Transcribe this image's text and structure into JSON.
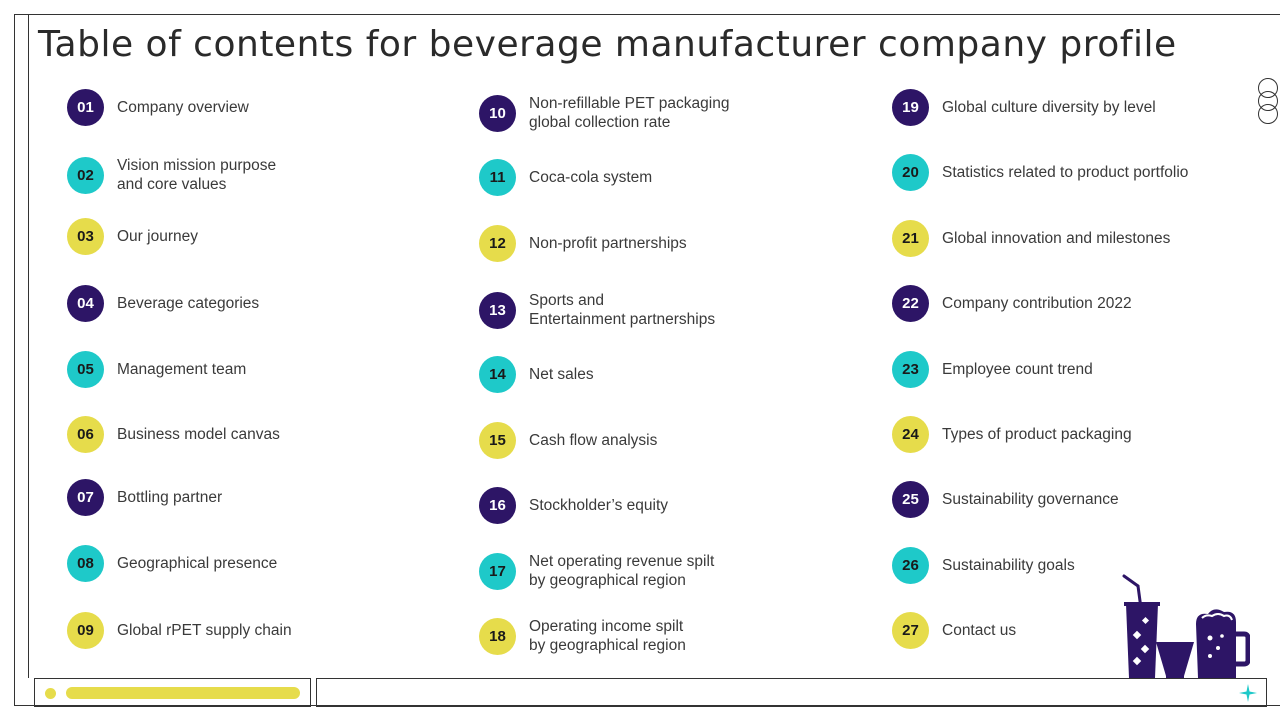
{
  "title": "Table of contents for beverage manufacturer company profile",
  "colors": {
    "purple": "#2d1566",
    "teal": "#1ec9c9",
    "yellow": "#e6dc4b"
  },
  "items": [
    {
      "num": "01",
      "label": "Company overview"
    },
    {
      "num": "02",
      "label": "Vision mission purpose\nand core values"
    },
    {
      "num": "03",
      "label": "Our journey"
    },
    {
      "num": "04",
      "label": "Beverage categories"
    },
    {
      "num": "05",
      "label": "Management team"
    },
    {
      "num": "06",
      "label": "Business model canvas"
    },
    {
      "num": "07",
      "label": "Bottling partner"
    },
    {
      "num": "08",
      "label": "Geographical presence"
    },
    {
      "num": "09",
      "label": "Global rPET supply chain"
    },
    {
      "num": "10",
      "label": "Non-refillable PET packaging\nglobal collection rate"
    },
    {
      "num": "11",
      "label": "Coca-cola system"
    },
    {
      "num": "12",
      "label": "Non-profit partnerships"
    },
    {
      "num": "13",
      "label": "Sports and\nEntertainment  partnerships"
    },
    {
      "num": "14",
      "label": "Net sales"
    },
    {
      "num": "15",
      "label": "Cash flow analysis"
    },
    {
      "num": "16",
      "label": "Stockholder’s equity"
    },
    {
      "num": "17",
      "label": "Net operating revenue spilt\nby geographical region"
    },
    {
      "num": "18",
      "label": "Operating income spilt\nby geographical region"
    },
    {
      "num": "19",
      "label": "Global culture  diversity by level"
    },
    {
      "num": "20",
      "label": "Statistics related to product portfolio"
    },
    {
      "num": "21",
      "label": "Global innovation  and milestones"
    },
    {
      "num": "22",
      "label": "Company contribution 2022"
    },
    {
      "num": "23",
      "label": "Employee count trend"
    },
    {
      "num": "24",
      "label": "Types of product packaging"
    },
    {
      "num": "25",
      "label": "Sustainability governance"
    },
    {
      "num": "26",
      "label": "Sustainability goals"
    },
    {
      "num": "27",
      "label": "Contact us"
    }
  ]
}
